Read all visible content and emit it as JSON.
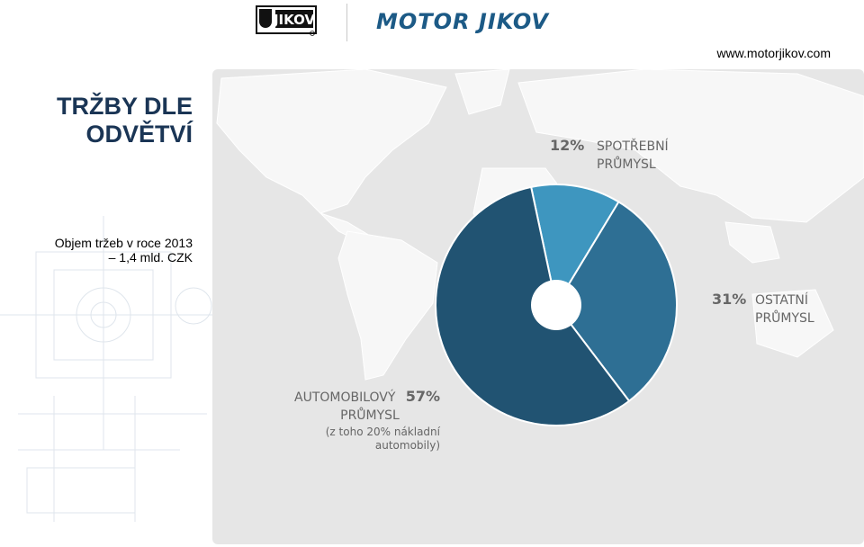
{
  "header": {
    "logo_left": "JIKOV",
    "logo_right": "MOTOR JIKOV",
    "website": "www.motorjikov.com"
  },
  "title": {
    "line1": "TRŽBY DLE",
    "line2": "ODVĚTVÍ"
  },
  "sidebar": {
    "line1": "Objem tržeb v roce 2013",
    "line2": "– 1,4 mld. CZK"
  },
  "chart_data": {
    "type": "pie",
    "title": "",
    "slices": [
      {
        "name": "SPOTŘEBNÍ PRŮMYSL",
        "label_lines": [
          "SPOTŘEBNÍ",
          "PRŮMYSL"
        ],
        "value": 12,
        "pct_label": "12%",
        "color": "#3e96bf"
      },
      {
        "name": "OSTATNÍ PRŮMYSL",
        "label_lines": [
          "OSTATNÍ",
          "PRŮMYSL"
        ],
        "value": 31,
        "pct_label": "31%",
        "color": "#2e6f94"
      },
      {
        "name": "AUTOMOBILOVÝ PRŮMYSL",
        "label_lines": [
          "AUTOMOBILOVÝ",
          "PRŮMYSL"
        ],
        "value": 57,
        "pct_label": "57%",
        "color": "#215372",
        "note_lines": [
          "(z toho 20% nákladní",
          "automobily)"
        ]
      }
    ],
    "start_angle_deg": -12,
    "hole": true,
    "legend": "none"
  },
  "colors": {
    "title": "#1a3555",
    "brand": "#1c5a86",
    "map_bg": "#e6e6e6",
    "land": "#f7f7f7",
    "label": "#666666"
  }
}
